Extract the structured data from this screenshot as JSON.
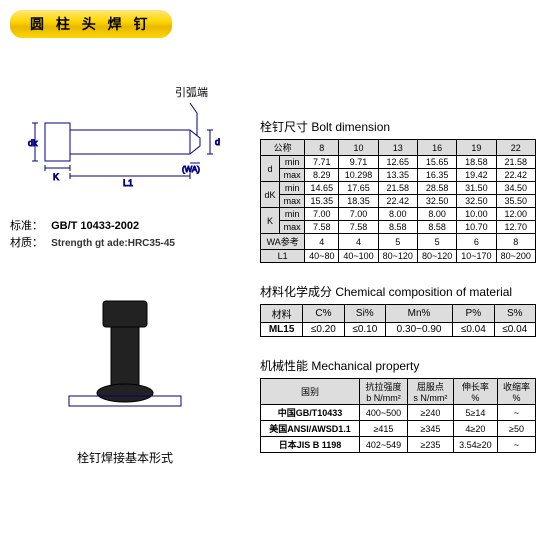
{
  "title": "圆 柱 头 焊 钉",
  "diagram_top_label": "引弧端",
  "spec": {
    "standard_label": "标准：",
    "standard_value": "GB/T 10433-2002",
    "material_label": "材质：",
    "material_value": "Strength gt ade:HRC35-45"
  },
  "caption2": "栓钉焊接基本形式",
  "table1": {
    "title": "栓钉尺寸  Bolt dimension",
    "col_header_first": "公称",
    "sizes": [
      "8",
      "10",
      "13",
      "16",
      "19",
      "22"
    ],
    "rows": [
      {
        "g": "d",
        "sub": "min",
        "v": [
          "7.71",
          "9.71",
          "12.65",
          "15.65",
          "18.58",
          "21.58"
        ]
      },
      {
        "g": "",
        "sub": "max",
        "v": [
          "8.29",
          "10.298",
          "13.35",
          "16.35",
          "19.42",
          "22.42"
        ]
      },
      {
        "g": "dK",
        "sub": "min",
        "v": [
          "14.65",
          "17.65",
          "21.58",
          "28.58",
          "31.50",
          "34.50"
        ]
      },
      {
        "g": "",
        "sub": "max",
        "v": [
          "15.35",
          "18.35",
          "22.42",
          "32.50",
          "32.50",
          "35.50"
        ]
      },
      {
        "g": "K",
        "sub": "min",
        "v": [
          "7.00",
          "7.00",
          "8.00",
          "8.00",
          "10.00",
          "12.00"
        ]
      },
      {
        "g": "",
        "sub": "max",
        "v": [
          "7.58",
          "7.58",
          "8.58",
          "8.58",
          "10.70",
          "12.70"
        ]
      }
    ],
    "wa_label": "WA参考",
    "wa": [
      "4",
      "4",
      "5",
      "5",
      "6",
      "8"
    ],
    "l1_label": "L1",
    "l1": [
      "40~80",
      "40~100",
      "80~120",
      "80~120",
      "10~170",
      "80~200"
    ]
  },
  "table2": {
    "title": "材料化学成分  Chemical composition of material",
    "headers": [
      "材料",
      "C%",
      "Si%",
      "Mn%",
      "P%",
      "S%"
    ],
    "row": [
      "ML15",
      "≤0.20",
      "≤0.10",
      "0.30~0.90",
      "≤0.04",
      "≤0.04"
    ]
  },
  "table3": {
    "title": "机械性能  Mechanical property",
    "headers": [
      "国别",
      "抗拉强度\nb N/mm²",
      "屈服点\ns N/mm²",
      "伸长率\n%",
      "收缩率\n%"
    ],
    "rows": [
      [
        "中国GB/T10433",
        "400~500",
        "≥240",
        "5≥14",
        "~"
      ],
      [
        "美国ANSI/AWSD1.1",
        "≥415",
        "≥345",
        "4≥20",
        "≥50"
      ],
      [
        "日本JIS B 1198",
        "402~549",
        "≥235",
        "3.54≥20",
        "~"
      ]
    ]
  },
  "colors": {
    "border": "#000000",
    "altrow": "#dddddd",
    "diagram_stroke": "#000080"
  }
}
